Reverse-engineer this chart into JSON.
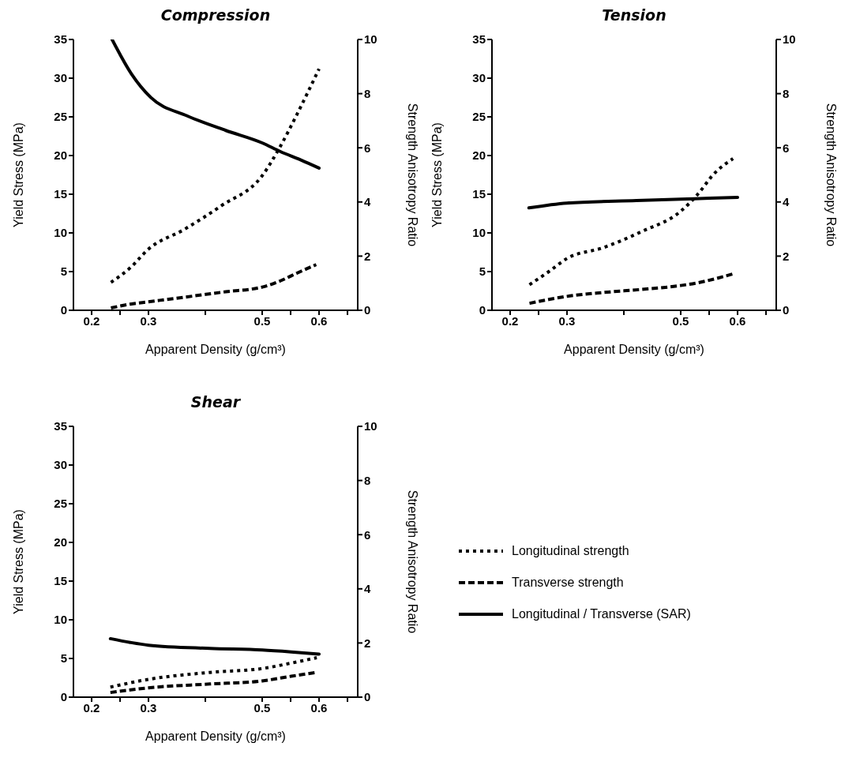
{
  "chart_data": [
    {
      "type": "line",
      "title": "Compression",
      "xlabel": "Apparent Density (g/cm³)",
      "ylabel": "Yield Stress (MPa)",
      "y2label": "Strength Anisotropy Ratio",
      "xlim": [
        0.168,
        0.668
      ],
      "xticks": [
        0.2,
        {
          "value": 0.25,
          "label": null
        },
        0.3,
        {
          "value": 0.4,
          "label": null
        },
        0.5,
        {
          "value": 0.55,
          "label": null
        },
        0.6,
        {
          "value": 0.65,
          "label": null
        }
      ],
      "ylim": [
        0,
        35
      ],
      "yticks": [
        0,
        5,
        10,
        15,
        20,
        25,
        30,
        35
      ],
      "y2lim": [
        0,
        10
      ],
      "y2ticks": [
        0,
        2,
        4,
        6,
        8,
        10
      ],
      "legend": false,
      "series": [
        {
          "color": "#000000",
          "line_style": "dotted",
          "x": [
            0.234,
            0.268,
            0.3,
            0.364,
            0.428,
            0.5,
            0.532,
            0.561,
            0.6
          ],
          "values": [
            3.6,
            5.5,
            7.9,
            10.5,
            13.5,
            17.4,
            21.2,
            25.3,
            31.2
          ]
        },
        {
          "color": "#000000",
          "line_style": "dashed",
          "x": [
            0.234,
            0.268,
            0.3,
            0.364,
            0.436,
            0.5,
            0.532,
            0.561,
            0.595
          ],
          "values": [
            0.3,
            0.8,
            1.1,
            1.7,
            2.4,
            3.0,
            3.8,
            4.8,
            5.9
          ]
        },
        {
          "color": "#000000",
          "line_style": "solid",
          "axis": "y2",
          "x": [
            0.236,
            0.27,
            0.304,
            0.368,
            0.436,
            0.5,
            0.532,
            0.568,
            0.6
          ],
          "values": [
            10.0,
            8.73,
            7.86,
            7.18,
            6.64,
            6.18,
            5.86,
            5.55,
            5.25
          ]
        }
      ]
    },
    {
      "type": "line",
      "title": "Tension",
      "xlabel": "Apparent Density (g/cm³)",
      "ylabel": "Yield Stress (MPa)",
      "y2label": "Strength Anisotropy Ratio",
      "xlim": [
        0.168,
        0.668
      ],
      "xticks": [
        0.2,
        {
          "value": 0.25,
          "label": null
        },
        0.3,
        {
          "value": 0.4,
          "label": null
        },
        0.5,
        {
          "value": 0.55,
          "label": null
        },
        0.6,
        {
          "value": 0.65,
          "label": null
        }
      ],
      "ylim": [
        0,
        35
      ],
      "yticks": [
        0,
        5,
        10,
        15,
        20,
        25,
        30,
        35
      ],
      "y2lim": [
        0,
        10
      ],
      "y2ticks": [
        0,
        2,
        4,
        6,
        8,
        10
      ],
      "legend": false,
      "series": [
        {
          "color": "#000000",
          "line_style": "dotted",
          "x": [
            0.234,
            0.268,
            0.3,
            0.364,
            0.432,
            0.5,
            0.53,
            0.558,
            0.592
          ],
          "values": [
            3.3,
            5.0,
            6.7,
            8.1,
            10.2,
            12.8,
            15.0,
            17.6,
            19.6
          ]
        },
        {
          "color": "#000000",
          "line_style": "dashed",
          "x": [
            0.234,
            0.268,
            0.3,
            0.364,
            0.432,
            0.5,
            0.533,
            0.562,
            0.592
          ],
          "values": [
            0.9,
            1.4,
            1.8,
            2.3,
            2.7,
            3.2,
            3.6,
            4.1,
            4.7
          ]
        },
        {
          "color": "#000000",
          "line_style": "solid",
          "axis": "y2",
          "x": [
            0.233,
            0.3,
            0.422,
            0.5,
            0.551,
            0.6
          ],
          "values": [
            3.78,
            3.96,
            4.05,
            4.1,
            4.14,
            4.17
          ]
        }
      ]
    },
    {
      "type": "line",
      "title": "Shear",
      "xlabel": "Apparent Density (g/cm³)",
      "ylabel": "Yield Stress (MPa)",
      "y2label": "Strength Anisotropy Ratio",
      "xlim": [
        0.168,
        0.668
      ],
      "xticks": [
        0.2,
        {
          "value": 0.25,
          "label": null
        },
        0.3,
        {
          "value": 0.4,
          "label": null
        },
        0.5,
        {
          "value": 0.55,
          "label": null
        },
        0.6,
        {
          "value": 0.65,
          "label": null
        }
      ],
      "ylim": [
        0,
        35
      ],
      "yticks": [
        0,
        5,
        10,
        15,
        20,
        25,
        30,
        35
      ],
      "y2lim": [
        0,
        10
      ],
      "y2ticks": [
        0,
        2,
        4,
        6,
        8,
        10
      ],
      "legend": "right",
      "series": [
        {
          "name": "Longitudinal strength",
          "color": "#000000",
          "line_style": "dotted",
          "x": [
            0.233,
            0.3,
            0.408,
            0.5,
            0.551,
            0.596
          ],
          "values": [
            1.3,
            2.3,
            3.2,
            3.7,
            4.4,
            5.1
          ]
        },
        {
          "name": "Transverse strength",
          "color": "#000000",
          "line_style": "dashed",
          "x": [
            0.233,
            0.3,
            0.408,
            0.5,
            0.551,
            0.596
          ],
          "values": [
            0.6,
            1.2,
            1.7,
            2.1,
            2.7,
            3.2
          ]
        },
        {
          "name": "Longitudinal / Transverse (SAR)",
          "color": "#000000",
          "line_style": "solid",
          "axis": "y2",
          "x": [
            0.233,
            0.268,
            0.3,
            0.408,
            0.5,
            0.551,
            0.6
          ],
          "values": [
            2.16,
            2.02,
            1.92,
            1.8,
            1.74,
            1.67,
            1.59
          ]
        }
      ]
    }
  ]
}
